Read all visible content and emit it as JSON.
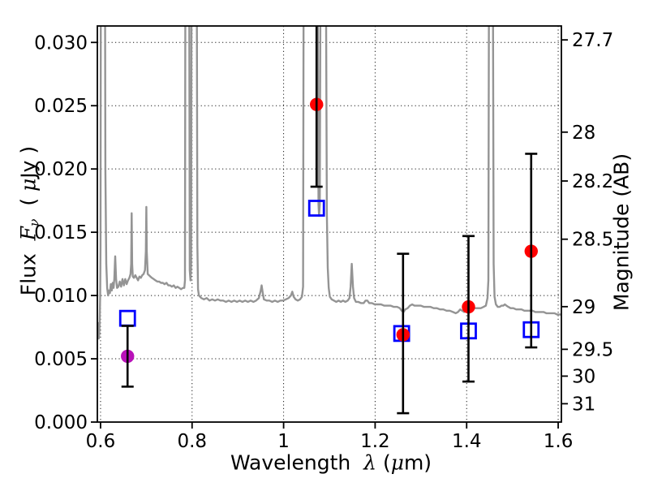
{
  "colors": {
    "background": "#ffffff",
    "spectrum": "#949494",
    "red_marker": "#ff0000",
    "purple_marker": "#b912b9",
    "blue_marker": "#0000ff",
    "error_bar": "#000000",
    "axis": "#000000",
    "grid": "#1a1a1a",
    "text": "#000000"
  },
  "chart_data": {
    "type": "line+scatter",
    "title": "",
    "xlabel_segments": [
      {
        "t": "Wavelength  ",
        "s": "plain"
      },
      {
        "t": "λ",
        "s": "mathit"
      },
      {
        "t": " (",
        "s": "plain"
      },
      {
        "t": "μ",
        "s": "mathit"
      },
      {
        "t": "m)",
        "s": "plain"
      }
    ],
    "ylabel_left_segments": [
      {
        "t": "Flux  ",
        "s": "plain"
      },
      {
        "t": "F",
        "s": "mathit"
      },
      {
        "t": "ν",
        "s": "sub"
      },
      {
        "t": "  ( ",
        "s": "plain"
      },
      {
        "t": "μ",
        "s": "mathit"
      },
      {
        "t": "Jy )",
        "s": "plain"
      }
    ],
    "ylabel_right": "Magnitude (AB)",
    "xlim": [
      0.593,
      1.607
    ],
    "ylim": [
      0.0,
      0.0313
    ],
    "grid": true,
    "legend": false,
    "x_ticks": [
      {
        "label": "0.6",
        "value": 0.6
      },
      {
        "label": "0.8",
        "value": 0.8
      },
      {
        "label": "1",
        "value": 1.0
      },
      {
        "label": "1.2",
        "value": 1.2
      },
      {
        "label": "1.4",
        "value": 1.4
      },
      {
        "label": "1.6",
        "value": 1.6
      }
    ],
    "y_ticks_left": [
      {
        "label": "0.000",
        "value": 0.0
      },
      {
        "label": "0.005",
        "value": 0.005
      },
      {
        "label": "0.010",
        "value": 0.01
      },
      {
        "label": "0.015",
        "value": 0.015
      },
      {
        "label": "0.020",
        "value": 0.02
      },
      {
        "label": "0.025",
        "value": 0.025
      },
      {
        "label": "0.030",
        "value": 0.03
      }
    ],
    "y_ticks_right": [
      {
        "label": "27.7",
        "flux_value": 0.0302
      },
      {
        "label": "28",
        "flux_value": 0.02291
      },
      {
        "label": "28.2",
        "flux_value": 0.01905
      },
      {
        "label": "28.5",
        "flux_value": 0.01445
      },
      {
        "label": "29",
        "flux_value": 0.00912
      },
      {
        "label": "29.5",
        "flux_value": 0.00575
      },
      {
        "label": "30",
        "flux_value": 0.00363
      },
      {
        "label": "31",
        "flux_value": 0.00145
      }
    ],
    "spectrum": {
      "name": "model-spectrum-gray",
      "color": "#949494",
      "points": [
        [
          0.594,
          0.0079
        ],
        [
          0.5952,
          0.007
        ],
        [
          0.5962,
          0.0066
        ],
        [
          0.5972,
          0.007
        ],
        [
          0.5982,
          0.008
        ],
        [
          0.5992,
          0.01
        ],
        [
          0.6,
          0.014
        ],
        [
          0.6008,
          0.04
        ],
        [
          0.6095,
          0.04
        ],
        [
          0.6105,
          0.02
        ],
        [
          0.6125,
          0.0125
        ],
        [
          0.6145,
          0.0106
        ],
        [
          0.6165,
          0.01
        ],
        [
          0.6185,
          0.0104
        ],
        [
          0.6205,
          0.0102
        ],
        [
          0.6225,
          0.0109
        ],
        [
          0.6245,
          0.0104
        ],
        [
          0.6265,
          0.011
        ],
        [
          0.6285,
          0.0106
        ],
        [
          0.63,
          0.0113
        ],
        [
          0.632,
          0.0131
        ],
        [
          0.634,
          0.0113
        ],
        [
          0.636,
          0.0106
        ],
        [
          0.639,
          0.0107
        ],
        [
          0.642,
          0.0111
        ],
        [
          0.645,
          0.0107
        ],
        [
          0.648,
          0.0113
        ],
        [
          0.651,
          0.0108
        ],
        [
          0.654,
          0.0113
        ],
        [
          0.657,
          0.0109
        ],
        [
          0.66,
          0.0112
        ],
        [
          0.663,
          0.0114
        ],
        [
          0.6655,
          0.0117
        ],
        [
          0.667,
          0.0125
        ],
        [
          0.668,
          0.0165
        ],
        [
          0.669,
          0.0125
        ],
        [
          0.6705,
          0.0115
        ],
        [
          0.673,
          0.0114
        ],
        [
          0.676,
          0.0116
        ],
        [
          0.679,
          0.0114
        ],
        [
          0.682,
          0.0112
        ],
        [
          0.685,
          0.0115
        ],
        [
          0.688,
          0.0114
        ],
        [
          0.691,
          0.0116
        ],
        [
          0.694,
          0.0117
        ],
        [
          0.697,
          0.012
        ],
        [
          0.699,
          0.0135
        ],
        [
          0.7,
          0.017
        ],
        [
          0.701,
          0.0135
        ],
        [
          0.703,
          0.0117
        ],
        [
          0.706,
          0.0116
        ],
        [
          0.709,
          0.0115
        ],
        [
          0.712,
          0.0114
        ],
        [
          0.716,
          0.0113
        ],
        [
          0.72,
          0.0112
        ],
        [
          0.724,
          0.0111
        ],
        [
          0.728,
          0.0111
        ],
        [
          0.732,
          0.011
        ],
        [
          0.736,
          0.011
        ],
        [
          0.74,
          0.0109
        ],
        [
          0.744,
          0.011
        ],
        [
          0.748,
          0.0108
        ],
        [
          0.752,
          0.0108
        ],
        [
          0.756,
          0.0107
        ],
        [
          0.76,
          0.0108
        ],
        [
          0.764,
          0.0106
        ],
        [
          0.768,
          0.0107
        ],
        [
          0.772,
          0.0106
        ],
        [
          0.776,
          0.0105
        ],
        [
          0.78,
          0.0106
        ],
        [
          0.783,
          0.0106
        ],
        [
          0.7845,
          0.0112
        ],
        [
          0.7855,
          0.04
        ],
        [
          0.7935,
          0.04
        ],
        [
          0.795,
          0.012
        ],
        [
          0.7965,
          0.0112
        ],
        [
          0.798,
          0.0125
        ],
        [
          0.799,
          0.04
        ],
        [
          0.81,
          0.04
        ],
        [
          0.8115,
          0.014
        ],
        [
          0.813,
          0.0105
        ],
        [
          0.815,
          0.01
        ],
        [
          0.82,
          0.0098
        ],
        [
          0.826,
          0.0097
        ],
        [
          0.832,
          0.0098
        ],
        [
          0.838,
          0.0096
        ],
        [
          0.844,
          0.0097
        ],
        [
          0.85,
          0.0096
        ],
        [
          0.856,
          0.0097
        ],
        [
          0.862,
          0.0096
        ],
        [
          0.868,
          0.0096
        ],
        [
          0.874,
          0.0095
        ],
        [
          0.88,
          0.0096
        ],
        [
          0.886,
          0.0095
        ],
        [
          0.892,
          0.0096
        ],
        [
          0.898,
          0.0095
        ],
        [
          0.904,
          0.0096
        ],
        [
          0.91,
          0.0095
        ],
        [
          0.916,
          0.0096
        ],
        [
          0.922,
          0.0095
        ],
        [
          0.928,
          0.0096
        ],
        [
          0.934,
          0.0095
        ],
        [
          0.94,
          0.0096
        ],
        [
          0.946,
          0.0098
        ],
        [
          0.95,
          0.0104
        ],
        [
          0.952,
          0.0108
        ],
        [
          0.9545,
          0.0102
        ],
        [
          0.957,
          0.0097
        ],
        [
          0.963,
          0.0096
        ],
        [
          0.969,
          0.0096
        ],
        [
          0.975,
          0.0095
        ],
        [
          0.981,
          0.0096
        ],
        [
          0.987,
          0.0095
        ],
        [
          0.993,
          0.0096
        ],
        [
          0.999,
          0.0096
        ],
        [
          1.005,
          0.0097
        ],
        [
          1.011,
          0.0098
        ],
        [
          1.016,
          0.01
        ],
        [
          1.019,
          0.0103
        ],
        [
          1.022,
          0.0099
        ],
        [
          1.026,
          0.0097
        ],
        [
          1.031,
          0.0096
        ],
        [
          1.036,
          0.0097
        ],
        [
          1.04,
          0.0099
        ],
        [
          1.0425,
          0.0107
        ],
        [
          1.044,
          0.04
        ],
        [
          1.074,
          0.04
        ],
        [
          1.0762,
          0.0172
        ],
        [
          1.0775,
          0.0163
        ],
        [
          1.079,
          0.0172
        ],
        [
          1.081,
          0.04
        ],
        [
          1.092,
          0.04
        ],
        [
          1.0945,
          0.0165
        ],
        [
          1.0965,
          0.0122
        ],
        [
          1.0985,
          0.0106
        ],
        [
          1.101,
          0.0099
        ],
        [
          1.105,
          0.0097
        ],
        [
          1.11,
          0.0096
        ],
        [
          1.115,
          0.0095
        ],
        [
          1.12,
          0.0096
        ],
        [
          1.125,
          0.0095
        ],
        [
          1.13,
          0.0096
        ],
        [
          1.135,
          0.0095
        ],
        [
          1.14,
          0.0096
        ],
        [
          1.144,
          0.0098
        ],
        [
          1.1465,
          0.0107
        ],
        [
          1.149,
          0.0125
        ],
        [
          1.1515,
          0.0107
        ],
        [
          1.154,
          0.0098
        ],
        [
          1.158,
          0.0095
        ],
        [
          1.163,
          0.0095
        ],
        [
          1.169,
          0.0094
        ],
        [
          1.175,
          0.0094
        ],
        [
          1.179,
          0.0096
        ],
        [
          1.183,
          0.0096
        ],
        [
          1.187,
          0.0094
        ],
        [
          1.193,
          0.0094
        ],
        [
          1.199,
          0.0093
        ],
        [
          1.206,
          0.0093
        ],
        [
          1.213,
          0.0093
        ],
        [
          1.22,
          0.0092
        ],
        [
          1.227,
          0.0092
        ],
        [
          1.234,
          0.0092
        ],
        [
          1.241,
          0.0091
        ],
        [
          1.248,
          0.0091
        ],
        [
          1.254,
          0.009
        ],
        [
          1.258,
          0.0088
        ],
        [
          1.262,
          0.0087
        ],
        [
          1.266,
          0.0089
        ],
        [
          1.271,
          0.009
        ],
        [
          1.276,
          0.0092
        ],
        [
          1.281,
          0.0093
        ],
        [
          1.286,
          0.0092
        ],
        [
          1.293,
          0.0092
        ],
        [
          1.3,
          0.0092
        ],
        [
          1.307,
          0.0091
        ],
        [
          1.314,
          0.0091
        ],
        [
          1.321,
          0.0091
        ],
        [
          1.328,
          0.009
        ],
        [
          1.335,
          0.009
        ],
        [
          1.342,
          0.0089
        ],
        [
          1.349,
          0.0089
        ],
        [
          1.356,
          0.0088
        ],
        [
          1.363,
          0.0088
        ],
        [
          1.37,
          0.0087
        ],
        [
          1.376,
          0.0086
        ],
        [
          1.381,
          0.0087
        ],
        [
          1.386,
          0.0089
        ],
        [
          1.39,
          0.0088
        ],
        [
          1.3945,
          0.0087
        ],
        [
          1.399,
          0.0089
        ],
        [
          1.4035,
          0.0092
        ],
        [
          1.408,
          0.0091
        ],
        [
          1.413,
          0.009
        ],
        [
          1.419,
          0.009
        ],
        [
          1.425,
          0.009
        ],
        [
          1.431,
          0.009
        ],
        [
          1.437,
          0.0091
        ],
        [
          1.442,
          0.0092
        ],
        [
          1.4455,
          0.0098
        ],
        [
          1.4475,
          0.0112
        ],
        [
          1.449,
          0.04
        ],
        [
          1.457,
          0.04
        ],
        [
          1.459,
          0.0125
        ],
        [
          1.461,
          0.0099
        ],
        [
          1.464,
          0.0093
        ],
        [
          1.468,
          0.0091
        ],
        [
          1.472,
          0.0091
        ],
        [
          1.476,
          0.0092
        ],
        [
          1.48,
          0.0092
        ],
        [
          1.4835,
          0.0093
        ],
        [
          1.487,
          0.0092
        ],
        [
          1.491,
          0.0091
        ],
        [
          1.496,
          0.009
        ],
        [
          1.502,
          0.009
        ],
        [
          1.508,
          0.0089
        ],
        [
          1.514,
          0.0089
        ],
        [
          1.52,
          0.0089
        ],
        [
          1.526,
          0.0088
        ],
        [
          1.532,
          0.0088
        ],
        [
          1.538,
          0.0088
        ],
        [
          1.544,
          0.0088
        ],
        [
          1.55,
          0.0087
        ],
        [
          1.556,
          0.0087
        ],
        [
          1.562,
          0.0087
        ],
        [
          1.568,
          0.0087
        ],
        [
          1.574,
          0.0086
        ],
        [
          1.58,
          0.0086
        ],
        [
          1.586,
          0.0086
        ],
        [
          1.592,
          0.0086
        ],
        [
          1.598,
          0.0085
        ],
        [
          1.604,
          0.0085
        ],
        [
          1.607,
          0.0085
        ]
      ]
    },
    "scatter_series": [
      {
        "name": "blue-open-squares",
        "marker": "square",
        "color": "#0000ff",
        "fill": "none",
        "points": [
          {
            "x": 0.659,
            "y": 0.0082
          },
          {
            "x": 1.072,
            "y": 0.0169
          },
          {
            "x": 1.258,
            "y": 0.007
          },
          {
            "x": 1.404,
            "y": 0.0072
          },
          {
            "x": 1.541,
            "y": 0.0073
          }
        ]
      },
      {
        "name": "red-filled-circles",
        "marker": "circle",
        "color": "#ff0000",
        "points": [
          {
            "x": 1.072,
            "y": 0.0251,
            "err_lo": 0.0186,
            "err_hi": 0.033,
            "hi_clipped": true
          },
          {
            "x": 1.261,
            "y": 0.0069,
            "err_lo": 0.0007,
            "err_hi": 0.0133
          },
          {
            "x": 1.404,
            "y": 0.0091,
            "err_lo": 0.0032,
            "err_hi": 0.0147
          },
          {
            "x": 1.541,
            "y": 0.0135,
            "err_lo": 0.0059,
            "err_hi": 0.0212
          }
        ]
      },
      {
        "name": "purple-filled-circle",
        "marker": "circle",
        "color": "#b912b9",
        "points": [
          {
            "x": 0.659,
            "y": 0.0052,
            "err_lo": 0.0028,
            "err_hi": 0.0076
          }
        ]
      }
    ]
  }
}
